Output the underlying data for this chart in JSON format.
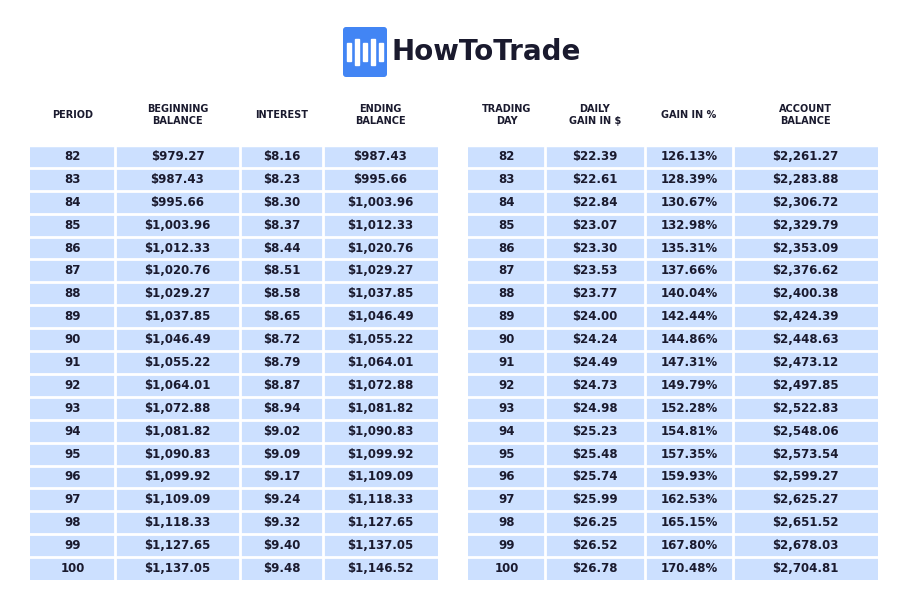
{
  "title_logo_text": "HowToTrade",
  "bg_color": "#ffffff",
  "cell_bg": "#cce0ff",
  "header_color": "#1a1a2e",
  "cell_text_color": "#1a1a2e",
  "separator_color": "#ffffff",
  "left_headers": [
    "PERIOD",
    "BEGINNING\nBALANCE",
    "INTEREST",
    "ENDING\nBALANCE"
  ],
  "right_headers": [
    "TRADING\nDAY",
    "DAILY\nGAIN IN $",
    "GAIN IN %",
    "ACCOUNT\nBALANCE"
  ],
  "rows": [
    [
      "82",
      "$979.27",
      "$8.16",
      "$987.43",
      "82",
      "$22.39",
      "126.13%",
      "$2,261.27"
    ],
    [
      "83",
      "$987.43",
      "$8.23",
      "$995.66",
      "83",
      "$22.61",
      "128.39%",
      "$2,283.88"
    ],
    [
      "84",
      "$995.66",
      "$8.30",
      "$1,003.96",
      "84",
      "$22.84",
      "130.67%",
      "$2,306.72"
    ],
    [
      "85",
      "$1,003.96",
      "$8.37",
      "$1,012.33",
      "85",
      "$23.07",
      "132.98%",
      "$2,329.79"
    ],
    [
      "86",
      "$1,012.33",
      "$8.44",
      "$1,020.76",
      "86",
      "$23.30",
      "135.31%",
      "$2,353.09"
    ],
    [
      "87",
      "$1,020.76",
      "$8.51",
      "$1,029.27",
      "87",
      "$23.53",
      "137.66%",
      "$2,376.62"
    ],
    [
      "88",
      "$1,029.27",
      "$8.58",
      "$1,037.85",
      "88",
      "$23.77",
      "140.04%",
      "$2,400.38"
    ],
    [
      "89",
      "$1,037.85",
      "$8.65",
      "$1,046.49",
      "89",
      "$24.00",
      "142.44%",
      "$2,424.39"
    ],
    [
      "90",
      "$1,046.49",
      "$8.72",
      "$1,055.22",
      "90",
      "$24.24",
      "144.86%",
      "$2,448.63"
    ],
    [
      "91",
      "$1,055.22",
      "$8.79",
      "$1,064.01",
      "91",
      "$24.49",
      "147.31%",
      "$2,473.12"
    ],
    [
      "92",
      "$1,064.01",
      "$8.87",
      "$1,072.88",
      "92",
      "$24.73",
      "149.79%",
      "$2,497.85"
    ],
    [
      "93",
      "$1,072.88",
      "$8.94",
      "$1,081.82",
      "93",
      "$24.98",
      "152.28%",
      "$2,522.83"
    ],
    [
      "94",
      "$1,081.82",
      "$9.02",
      "$1,090.83",
      "94",
      "$25.23",
      "154.81%",
      "$2,548.06"
    ],
    [
      "95",
      "$1,090.83",
      "$9.09",
      "$1,099.92",
      "95",
      "$25.48",
      "157.35%",
      "$2,573.54"
    ],
    [
      "96",
      "$1,099.92",
      "$9.17",
      "$1,109.09",
      "96",
      "$25.74",
      "159.93%",
      "$2,599.27"
    ],
    [
      "97",
      "$1,109.09",
      "$9.24",
      "$1,118.33",
      "97",
      "$25.99",
      "162.53%",
      "$2,625.27"
    ],
    [
      "98",
      "$1,118.33",
      "$9.32",
      "$1,127.65",
      "98",
      "$26.25",
      "165.15%",
      "$2,651.52"
    ],
    [
      "99",
      "$1,127.65",
      "$9.40",
      "$1,137.05",
      "99",
      "$26.52",
      "167.80%",
      "$2,678.03"
    ],
    [
      "100",
      "$1,137.05",
      "$9.48",
      "$1,146.52",
      "100",
      "$26.78",
      "170.48%",
      "$2,704.81"
    ]
  ],
  "logo_color": "#4285f4",
  "logo_text_color": "#1a1a2e",
  "header_fontsize": 7.0,
  "cell_fontsize": 8.5,
  "logo_fontsize": 20
}
